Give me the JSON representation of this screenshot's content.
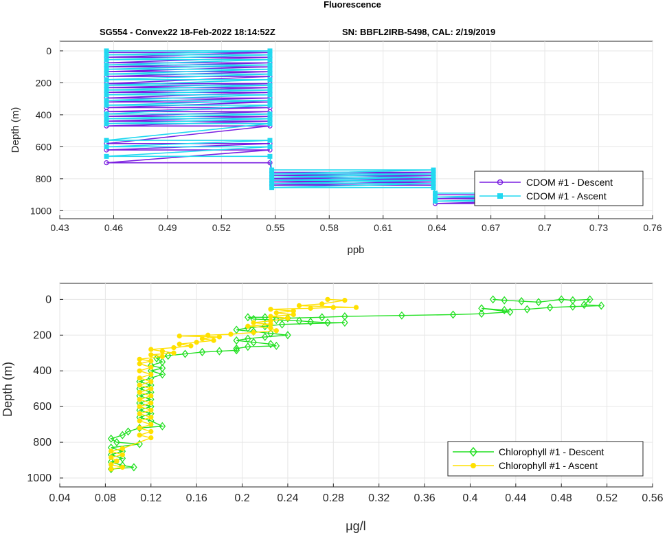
{
  "figure": {
    "suptitle": "Fluorescence",
    "subtitle_left": "SG554 - Convex22 18-Feb-2022 18:14:52Z",
    "subtitle_right": "SN: BBFL2IRB-5498, CAL: 2/19/2019"
  },
  "chart_data": [
    {
      "type": "line",
      "xlabel": "ppb",
      "ylabel": "Depth (m)",
      "xlim": [
        0.43,
        0.76
      ],
      "ylim": [
        1050,
        -60
      ],
      "y_reversed": true,
      "xticks": [
        "0.43",
        "0.46",
        "0.49",
        "0.52",
        "0.55",
        "0.58",
        "0.61",
        "0.64",
        "0.67",
        "0.7",
        "0.73",
        "0.76"
      ],
      "yticks": [
        "0",
        "200",
        "400",
        "600",
        "800",
        "1000"
      ],
      "grid": true,
      "legend_position": "bottom-right",
      "series": [
        {
          "name": "CDOM #1 - Descent",
          "color": "#7a1fe0",
          "marker": "circle",
          "segments": [
            {
              "y": 10,
              "x0": 0.456,
              "x1": 0.547
            },
            {
              "y": 40,
              "x0": 0.456,
              "x1": 0.547
            },
            {
              "y": 75,
              "x0": 0.456,
              "x1": 0.547
            },
            {
              "y": 100,
              "x0": 0.456,
              "x1": 0.547
            },
            {
              "y": 130,
              "x0": 0.456,
              "x1": 0.547
            },
            {
              "y": 160,
              "x0": 0.456,
              "x1": 0.547
            },
            {
              "y": 205,
              "x0": 0.456,
              "x1": 0.547
            },
            {
              "y": 230,
              "x0": 0.456,
              "x1": 0.547
            },
            {
              "y": 260,
              "x0": 0.456,
              "x1": 0.547
            },
            {
              "y": 295,
              "x0": 0.456,
              "x1": 0.547
            },
            {
              "y": 320,
              "x0": 0.456,
              "x1": 0.547
            },
            {
              "y": 355,
              "x0": 0.456,
              "x1": 0.547
            },
            {
              "y": 380,
              "x0": 0.456,
              "x1": 0.547
            },
            {
              "y": 410,
              "x0": 0.456,
              "x1": 0.547
            },
            {
              "y": 440,
              "x0": 0.456,
              "x1": 0.547
            },
            {
              "y": 470,
              "x0": 0.456,
              "x1": 0.547
            },
            {
              "y": 580,
              "x0": 0.456,
              "x1": 0.547
            },
            {
              "y": 620,
              "x0": 0.456,
              "x1": 0.547
            },
            {
              "y": 700,
              "x0": 0.456,
              "x1": 0.547
            },
            {
              "y": 760,
              "x0": 0.548,
              "x1": 0.638
            },
            {
              "y": 780,
              "x0": 0.548,
              "x1": 0.638
            },
            {
              "y": 800,
              "x0": 0.548,
              "x1": 0.638
            },
            {
              "y": 820,
              "x0": 0.548,
              "x1": 0.638
            },
            {
              "y": 840,
              "x0": 0.548,
              "x1": 0.638
            },
            {
              "y": 900,
              "x0": 0.639,
              "x1": 0.73
            },
            {
              "y": 925,
              "x0": 0.639,
              "x1": 0.73
            },
            {
              "y": 955,
              "x0": 0.639,
              "x1": 0.73
            }
          ]
        },
        {
          "name": "CDOM #1 - Ascent",
          "color": "#22d8f0",
          "marker": "square",
          "segments": [
            {
              "y": 0,
              "x0": 0.456,
              "x1": 0.547
            },
            {
              "y": 25,
              "x0": 0.456,
              "x1": 0.547
            },
            {
              "y": 55,
              "x0": 0.456,
              "x1": 0.547
            },
            {
              "y": 88,
              "x0": 0.456,
              "x1": 0.547
            },
            {
              "y": 115,
              "x0": 0.456,
              "x1": 0.547
            },
            {
              "y": 145,
              "x0": 0.456,
              "x1": 0.547
            },
            {
              "y": 180,
              "x0": 0.456,
              "x1": 0.547
            },
            {
              "y": 215,
              "x0": 0.456,
              "x1": 0.547
            },
            {
              "y": 245,
              "x0": 0.456,
              "x1": 0.547
            },
            {
              "y": 275,
              "x0": 0.456,
              "x1": 0.547
            },
            {
              "y": 310,
              "x0": 0.456,
              "x1": 0.547
            },
            {
              "y": 340,
              "x0": 0.456,
              "x1": 0.547
            },
            {
              "y": 395,
              "x0": 0.456,
              "x1": 0.547
            },
            {
              "y": 425,
              "x0": 0.456,
              "x1": 0.547
            },
            {
              "y": 455,
              "x0": 0.456,
              "x1": 0.547
            },
            {
              "y": 560,
              "x0": 0.456,
              "x1": 0.547
            },
            {
              "y": 600,
              "x0": 0.456,
              "x1": 0.547
            },
            {
              "y": 660,
              "x0": 0.456,
              "x1": 0.547
            },
            {
              "y": 745,
              "x0": 0.548,
              "x1": 0.638
            },
            {
              "y": 770,
              "x0": 0.548,
              "x1": 0.638
            },
            {
              "y": 790,
              "x0": 0.548,
              "x1": 0.638
            },
            {
              "y": 810,
              "x0": 0.548,
              "x1": 0.638
            },
            {
              "y": 830,
              "x0": 0.548,
              "x1": 0.638
            },
            {
              "y": 855,
              "x0": 0.548,
              "x1": 0.638
            },
            {
              "y": 890,
              "x0": 0.639,
              "x1": 0.73
            },
            {
              "y": 915,
              "x0": 0.639,
              "x1": 0.73
            },
            {
              "y": 940,
              "x0": 0.639,
              "x1": 0.73
            }
          ]
        }
      ]
    },
    {
      "type": "line",
      "xlabel": "μg/l",
      "ylabel": "Depth (m)",
      "xlim": [
        0.04,
        0.56
      ],
      "ylim": [
        1050,
        -90
      ],
      "y_reversed": true,
      "xticks": [
        "0.04",
        "0.08",
        "0.12",
        "0.16",
        "0.2",
        "0.24",
        "0.28",
        "0.32",
        "0.36",
        "0.4",
        "0.44",
        "0.48",
        "0.52",
        "0.56"
      ],
      "yticks": [
        "0",
        "200",
        "400",
        "600",
        "800",
        "1000"
      ],
      "grid": true,
      "legend_position": "bottom-right",
      "series": [
        {
          "name": "Chlorophyll #1 - Descent",
          "color": "#22e022",
          "marker": "diamond",
          "points": [
            [
              0.42,
              0
            ],
            [
              0.43,
              5
            ],
            [
              0.445,
              10
            ],
            [
              0.46,
              15
            ],
            [
              0.48,
              0
            ],
            [
              0.49,
              5
            ],
            [
              0.505,
              0
            ],
            [
              0.5,
              30
            ],
            [
              0.515,
              35
            ],
            [
              0.49,
              40
            ],
            [
              0.47,
              45
            ],
            [
              0.45,
              55
            ],
            [
              0.43,
              60
            ],
            [
              0.41,
              50
            ],
            [
              0.435,
              70
            ],
            [
              0.41,
              80
            ],
            [
              0.385,
              85
            ],
            [
              0.34,
              90
            ],
            [
              0.29,
              95
            ],
            [
              0.27,
              100
            ],
            [
              0.24,
              105
            ],
            [
              0.22,
              100
            ],
            [
              0.205,
              100
            ],
            [
              0.21,
              110
            ],
            [
              0.23,
              115
            ],
            [
              0.25,
              120
            ],
            [
              0.26,
              125
            ],
            [
              0.275,
              130
            ],
            [
              0.29,
              130
            ],
            [
              0.235,
              140
            ],
            [
              0.22,
              150
            ],
            [
              0.205,
              160
            ],
            [
              0.195,
              170
            ],
            [
              0.21,
              180
            ],
            [
              0.225,
              190
            ],
            [
              0.24,
              200
            ],
            [
              0.22,
              210
            ],
            [
              0.205,
              220
            ],
            [
              0.195,
              230
            ],
            [
              0.21,
              240
            ],
            [
              0.225,
              250
            ],
            [
              0.23,
              260
            ],
            [
              0.205,
              265
            ],
            [
              0.195,
              275
            ],
            [
              0.195,
              285
            ],
            [
              0.18,
              290
            ],
            [
              0.165,
              295
            ],
            [
              0.15,
              305
            ],
            [
              0.135,
              315
            ],
            [
              0.125,
              330
            ],
            [
              0.13,
              350
            ],
            [
              0.12,
              370
            ],
            [
              0.13,
              385
            ],
            [
              0.12,
              400
            ],
            [
              0.13,
              420
            ],
            [
              0.12,
              440
            ],
            [
              0.11,
              460
            ],
            [
              0.12,
              480
            ],
            [
              0.11,
              500
            ],
            [
              0.12,
              520
            ],
            [
              0.11,
              540
            ],
            [
              0.12,
              560
            ],
            [
              0.11,
              580
            ],
            [
              0.12,
              600
            ],
            [
              0.11,
              620
            ],
            [
              0.12,
              640
            ],
            [
              0.11,
              660
            ],
            [
              0.12,
              680
            ],
            [
              0.13,
              710
            ],
            [
              0.11,
              720
            ],
            [
              0.1,
              740
            ],
            [
              0.095,
              760
            ],
            [
              0.085,
              780
            ],
            [
              0.09,
              800
            ],
            [
              0.11,
              810
            ],
            [
              0.085,
              830
            ],
            [
              0.095,
              850
            ],
            [
              0.085,
              870
            ],
            [
              0.095,
              890
            ],
            [
              0.085,
              910
            ],
            [
              0.095,
              930
            ],
            [
              0.105,
              940
            ],
            [
              0.085,
              950
            ]
          ]
        },
        {
          "name": "Chlorophyll #1 - Ascent",
          "color": "#ffe000",
          "marker": "circle",
          "points": [
            [
              0.085,
              950
            ],
            [
              0.095,
              940
            ],
            [
              0.085,
              925
            ],
            [
              0.09,
              905
            ],
            [
              0.085,
              885
            ],
            [
              0.095,
              870
            ],
            [
              0.085,
              850
            ],
            [
              0.095,
              835
            ],
            [
              0.12,
              775
            ],
            [
              0.11,
              760
            ],
            [
              0.12,
              740
            ],
            [
              0.11,
              720
            ],
            [
              0.12,
              700
            ],
            [
              0.11,
              680
            ],
            [
              0.12,
              660
            ],
            [
              0.11,
              640
            ],
            [
              0.12,
              620
            ],
            [
              0.11,
              600
            ],
            [
              0.12,
              580
            ],
            [
              0.11,
              560
            ],
            [
              0.12,
              540
            ],
            [
              0.11,
              520
            ],
            [
              0.12,
              500
            ],
            [
              0.11,
              480
            ],
            [
              0.12,
              460
            ],
            [
              0.11,
              440
            ],
            [
              0.12,
              420
            ],
            [
              0.11,
              400
            ],
            [
              0.12,
              380
            ],
            [
              0.11,
              360
            ],
            [
              0.12,
              345
            ],
            [
              0.11,
              335
            ],
            [
              0.13,
              320
            ],
            [
              0.12,
              310
            ],
            [
              0.14,
              300
            ],
            [
              0.13,
              290
            ],
            [
              0.12,
              280
            ],
            [
              0.14,
              270
            ],
            [
              0.155,
              260
            ],
            [
              0.145,
              250
            ],
            [
              0.16,
              240
            ],
            [
              0.175,
              230
            ],
            [
              0.165,
              220
            ],
            [
              0.18,
              210
            ],
            [
              0.145,
              205
            ],
            [
              0.17,
              200
            ],
            [
              0.19,
              195
            ],
            [
              0.21,
              185
            ],
            [
              0.23,
              175
            ],
            [
              0.225,
              160
            ],
            [
              0.205,
              150
            ],
            [
              0.225,
              140
            ],
            [
              0.21,
              130
            ],
            [
              0.225,
              120
            ],
            [
              0.24,
              105
            ],
            [
              0.225,
              95
            ],
            [
              0.245,
              85
            ],
            [
              0.23,
              75
            ],
            [
              0.245,
              65
            ],
            [
              0.225,
              55
            ],
            [
              0.26,
              50
            ],
            [
              0.28,
              45
            ],
            [
              0.3,
              45
            ],
            [
              0.25,
              35
            ],
            [
              0.27,
              25
            ],
            [
              0.29,
              5
            ],
            [
              0.275,
              0
            ]
          ]
        }
      ]
    }
  ]
}
